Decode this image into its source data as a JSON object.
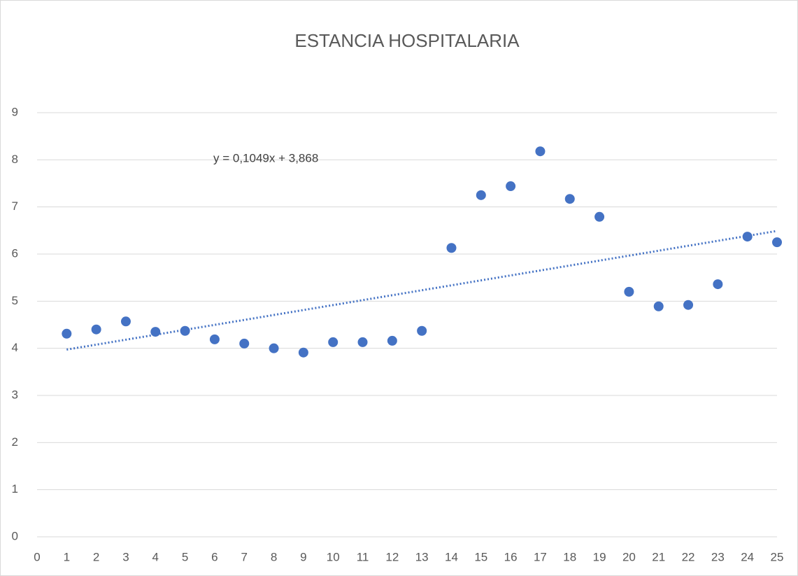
{
  "chart_data": {
    "type": "scatter",
    "title": "ESTANCIA HOSPITALARIA",
    "x": [
      1,
      2,
      3,
      4,
      5,
      6,
      7,
      8,
      9,
      10,
      11,
      12,
      13,
      14,
      15,
      16,
      17,
      18,
      19,
      20,
      21,
      22,
      23,
      24,
      25
    ],
    "series": [
      {
        "color": "#4472c4",
        "values": [
          4.31,
          4.4,
          4.57,
          4.35,
          4.37,
          4.19,
          4.1,
          4.0,
          3.91,
          4.13,
          4.13,
          4.16,
          4.37,
          6.13,
          7.25,
          7.44,
          8.18,
          7.17,
          6.79,
          5.2,
          4.89,
          4.92,
          5.36,
          6.37,
          6.25
        ]
      }
    ],
    "trendline": {
      "slope": 0.1049,
      "intercept": 3.868,
      "label": "y = 0,1049x + 3,868",
      "color": "#4472c4"
    },
    "xlim": [
      0,
      25
    ],
    "xticks": [
      0,
      1,
      2,
      3,
      4,
      5,
      6,
      7,
      8,
      9,
      10,
      11,
      12,
      13,
      14,
      15,
      16,
      17,
      18,
      19,
      20,
      21,
      22,
      23,
      24,
      25
    ],
    "ylim": [
      0,
      9
    ],
    "yticks": [
      0,
      1,
      2,
      3,
      4,
      5,
      6,
      7,
      8,
      9
    ],
    "grid": true
  }
}
